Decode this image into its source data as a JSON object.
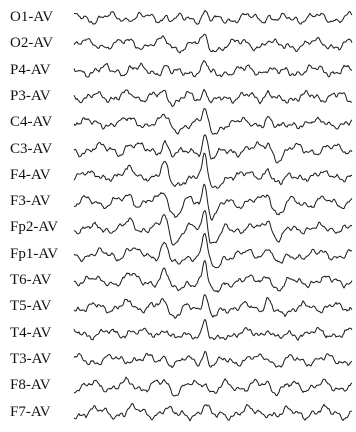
{
  "figure": {
    "trace_color": "#1a1a1a",
    "background_color": "#ffffff",
    "channels": [
      "O1-AV",
      "O2-AV",
      "P4-AV",
      "P3-AV",
      "C4-AV",
      "C3-AV",
      "F4-AV",
      "F3-AV",
      "Fp2-AV",
      "Fp1-AV",
      "T6-AV",
      "T5-AV",
      "T4-AV",
      "T3-AV",
      "F8-AV",
      "F7-AV"
    ]
  }
}
